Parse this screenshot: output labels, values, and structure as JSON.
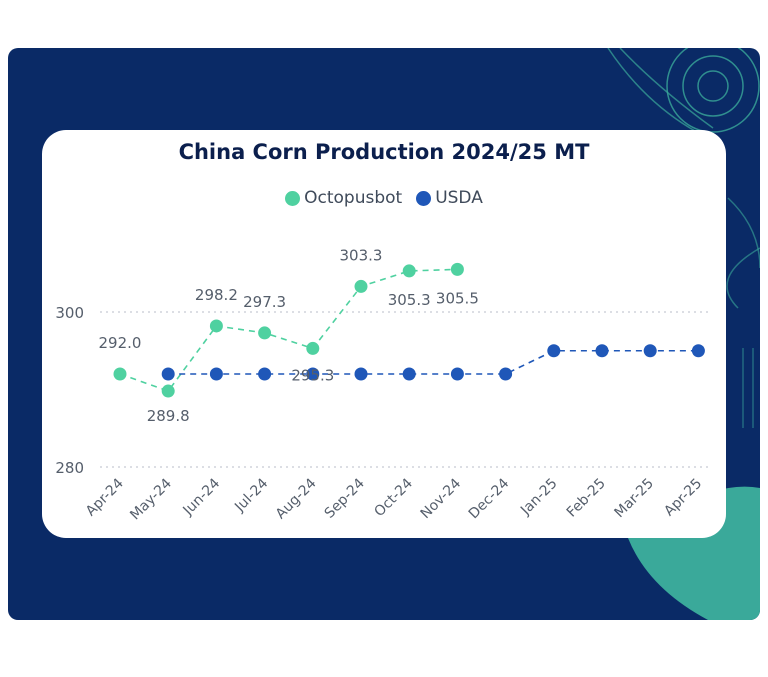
{
  "colors": {
    "background": "#0a2a66",
    "card": "#ffffff",
    "octopusbot": "#4fd1a0",
    "usda": "#1f57b8",
    "deco_line": "#3aa99a",
    "deco_fill": "#3aa99a"
  },
  "chart_data": {
    "type": "line",
    "title": "China Corn Production 2024/25 MT",
    "xlabel": "",
    "ylabel": "",
    "categories": [
      "Apr-24",
      "May-24",
      "Jun-24",
      "Jul-24",
      "Aug-24",
      "Sep-24",
      "Oct-24",
      "Nov-24",
      "Dec-24",
      "Jan-25",
      "Feb-25",
      "Mar-25",
      "Apr-25"
    ],
    "y_ticks": [
      280,
      300
    ],
    "ylim": [
      280,
      308
    ],
    "grid": "dotted horizontal",
    "legend": "top-center",
    "series": [
      {
        "name": "Octopusbot",
        "color": "#4fd1a0",
        "values": [
          292.0,
          289.8,
          298.2,
          297.3,
          295.3,
          303.3,
          305.3,
          305.5,
          null,
          null,
          null,
          null,
          null
        ],
        "labels": [
          "292.0",
          "289.8",
          "298.2",
          "297.3",
          "295.3",
          "303.3",
          "305.3",
          "305.5",
          "",
          "",
          "",
          "",
          ""
        ]
      },
      {
        "name": "USDA",
        "color": "#1f57b8",
        "values": [
          null,
          292.0,
          292.0,
          292.0,
          292.0,
          292.0,
          292.0,
          292.0,
          292.0,
          295.0,
          295.0,
          295.0,
          295.0
        ]
      }
    ]
  }
}
